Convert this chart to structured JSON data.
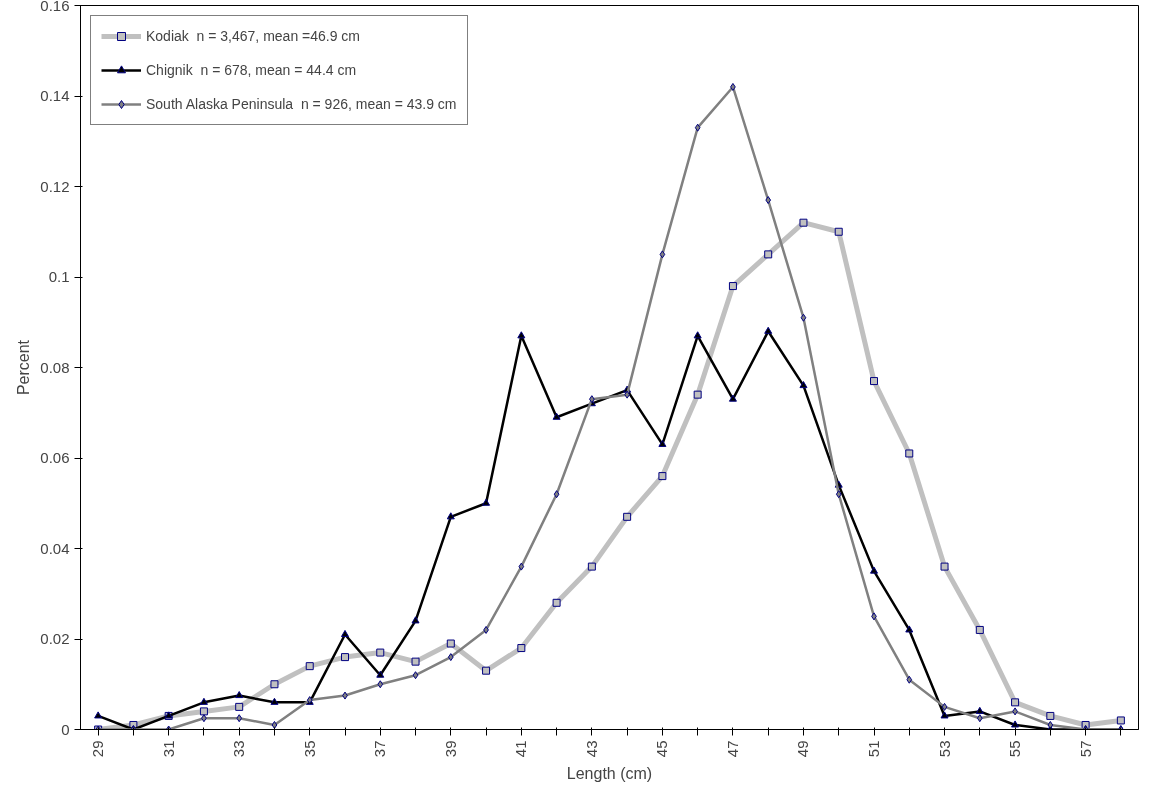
{
  "chart_data": {
    "type": "line",
    "xlabel": "Length (cm)",
    "ylabel": "Percent",
    "categories": [
      "29",
      null,
      "31",
      null,
      "33",
      null,
      "35",
      null,
      "37",
      null,
      "39",
      null,
      "41",
      null,
      "43",
      null,
      "45",
      null,
      "47",
      null,
      "49",
      null,
      "51",
      null,
      "53",
      null,
      "55",
      null,
      "57",
      null
    ],
    "series": [
      {
        "name": "Kodiak  n = 3,467, mean =46.9 cm",
        "color": "#c0c0c0",
        "marker": "square",
        "values": [
          0,
          0.001,
          0.003,
          0.004,
          0.005,
          0.01,
          0.014,
          0.016,
          0.017,
          0.015,
          0.019,
          0.013,
          0.018,
          0.028,
          0.036,
          0.047,
          0.056,
          0.074,
          0.098,
          0.105,
          0.112,
          0.11,
          0.077,
          0.061,
          0.036,
          0.022,
          0.006,
          0.003,
          0.001,
          0.002
        ]
      },
      {
        "name": "Chignik  n = 678, mean = 44.4 cm",
        "color": "#000000",
        "marker": "triangle",
        "values": [
          0.003,
          0,
          0.003,
          0.006,
          0.0075,
          0.006,
          0.006,
          0.021,
          0.012,
          0.024,
          0.047,
          0.05,
          0.087,
          0.069,
          0.072,
          0.075,
          0.063,
          0.087,
          0.073,
          0.088,
          0.076,
          0.054,
          0.035,
          0.022,
          0.003,
          0.004,
          0.001,
          0,
          0,
          0
        ]
      },
      {
        "name": "South Alaska Peninsula  n = 926, mean = 43.9 cm",
        "color": "#808080",
        "marker": "diamond",
        "values": [
          0,
          0,
          0,
          0.0025,
          0.0025,
          0.001,
          0.0065,
          0.0075,
          0.01,
          0.012,
          0.016,
          0.022,
          0.036,
          0.052,
          0.073,
          0.074,
          0.105,
          0.133,
          0.142,
          0.117,
          0.091,
          0.052,
          0.025,
          0.011,
          0.005,
          0.0025,
          0.004,
          0.001,
          0,
          0
        ]
      }
    ],
    "ylim": [
      0,
      0.16
    ],
    "yticks": [
      0,
      0.02,
      0.04,
      0.06,
      0.08,
      0.1,
      0.12,
      0.14,
      0.16
    ],
    "grid": false,
    "legend": "top left"
  }
}
